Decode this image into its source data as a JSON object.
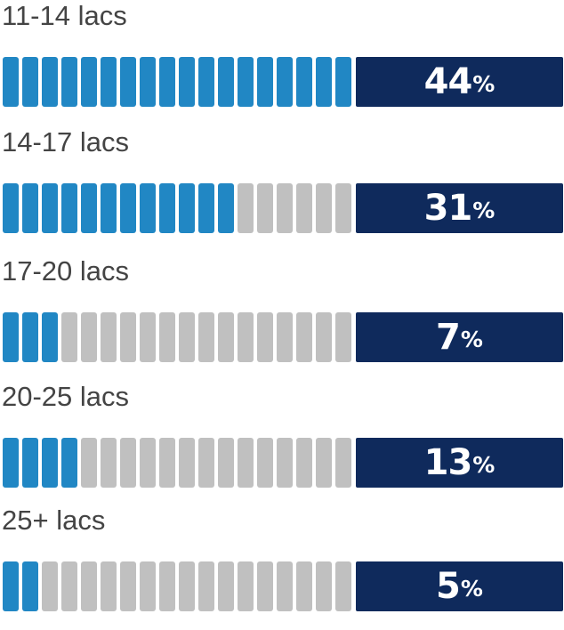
{
  "chart_data": {
    "type": "bar",
    "categories": [
      "11-14 lacs",
      "14-17 lacs",
      "17-20 lacs",
      "20-25 lacs",
      "25+ lacs"
    ],
    "values": [
      44,
      31,
      7,
      13,
      5
    ],
    "value_labels": [
      "44",
      "31",
      "7",
      "13",
      "5"
    ],
    "percent_sign": "%",
    "segments_total": 18,
    "segments_filled": [
      18,
      12,
      3,
      4,
      2
    ],
    "unit": "%",
    "colors": {
      "filled_segment": "#2187c4",
      "empty_segment": "#c0c0c0",
      "value_box": "#0f2a5c",
      "value_text": "#ffffff",
      "label_text": "#444444"
    }
  }
}
